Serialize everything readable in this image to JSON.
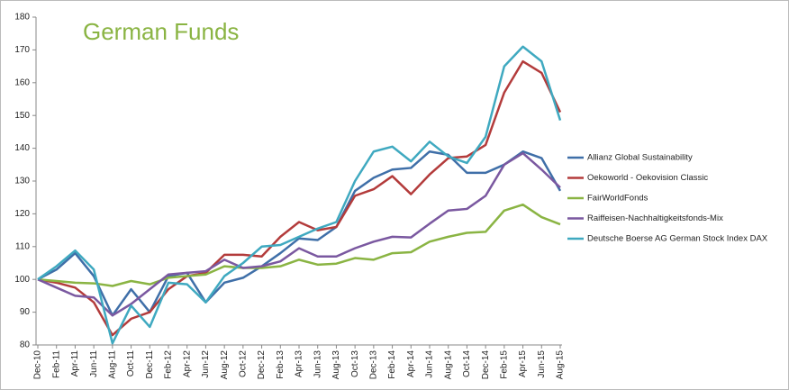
{
  "chart_data": {
    "type": "line",
    "title": "German Funds",
    "categories": [
      "Dec-10",
      "Feb-11",
      "Apr-11",
      "Jun-11",
      "Aug-11",
      "Oct-11",
      "Dec-11",
      "Feb-12",
      "Apr-12",
      "Jun-12",
      "Aug-12",
      "Oct-12",
      "Dec-12",
      "Feb-13",
      "Apr-13",
      "Jun-13",
      "Aug-13",
      "Oct-13",
      "Dec-13",
      "Feb-14",
      "Apr-14",
      "Jun-14",
      "Aug-14",
      "Oct-14",
      "Dec-14",
      "Feb-15",
      "Apr-15",
      "Jun-15",
      "Aug-15"
    ],
    "series": [
      {
        "name": "Allianz Global Sustainability",
        "color": "#3f6fa8",
        "values": [
          100,
          103,
          108,
          101,
          89,
          97,
          90,
          101,
          102,
          93,
          99,
          100.5,
          104,
          108,
          112.5,
          112,
          116,
          127,
          131,
          133.5,
          134,
          139,
          138,
          132.5,
          132.5,
          135,
          139,
          137,
          127
        ]
      },
      {
        "name": "Oekoworld - Oekovision Classic",
        "color": "#b33b3b",
        "values": [
          100,
          99,
          97.5,
          93,
          83,
          88,
          90,
          97,
          101,
          102,
          107.5,
          107.5,
          107,
          113,
          117.5,
          115,
          116,
          125.5,
          127.5,
          131.5,
          126,
          132,
          137,
          137.5,
          141,
          157,
          166.5,
          163,
          151
        ]
      },
      {
        "name": "FairWorldFonds",
        "color": "#8ab443",
        "values": [
          100,
          99.5,
          99,
          98.8,
          98,
          99.5,
          98.5,
          100.5,
          101,
          101.5,
          104,
          103.5,
          103.5,
          104,
          106,
          104.5,
          104.8,
          106.5,
          106,
          108,
          108.3,
          111.5,
          113,
          114.2,
          114.5,
          121,
          122.8,
          119,
          116.8
        ]
      },
      {
        "name": "Raiffeisen-Nachhaltigkeitsfonds-Mix",
        "color": "#7a58a0",
        "values": [
          100,
          97.5,
          95,
          94.5,
          89,
          92.5,
          97,
          101.5,
          102,
          102.5,
          106,
          103.5,
          104,
          105.5,
          109.5,
          107,
          107,
          109.5,
          111.5,
          113,
          112.8,
          117,
          121,
          121.5,
          125.5,
          135,
          138.5,
          133.5,
          128
        ]
      },
      {
        "name": "Deutsche Boerse AG German Stock Index DAX",
        "color": "#3fa9c0",
        "values": [
          100,
          104,
          108.8,
          103,
          80.5,
          92,
          85.5,
          99,
          98.5,
          93,
          101,
          105,
          110,
          110.5,
          113,
          115.5,
          117.5,
          130,
          139,
          140.5,
          136,
          142,
          137.5,
          135.5,
          143.5,
          165,
          171,
          166.5,
          148.5
        ]
      }
    ],
    "ylim": [
      80,
      180
    ],
    "yticks": [
      80,
      90,
      100,
      110,
      120,
      130,
      140,
      150,
      160,
      170,
      180
    ],
    "legend": "right"
  }
}
